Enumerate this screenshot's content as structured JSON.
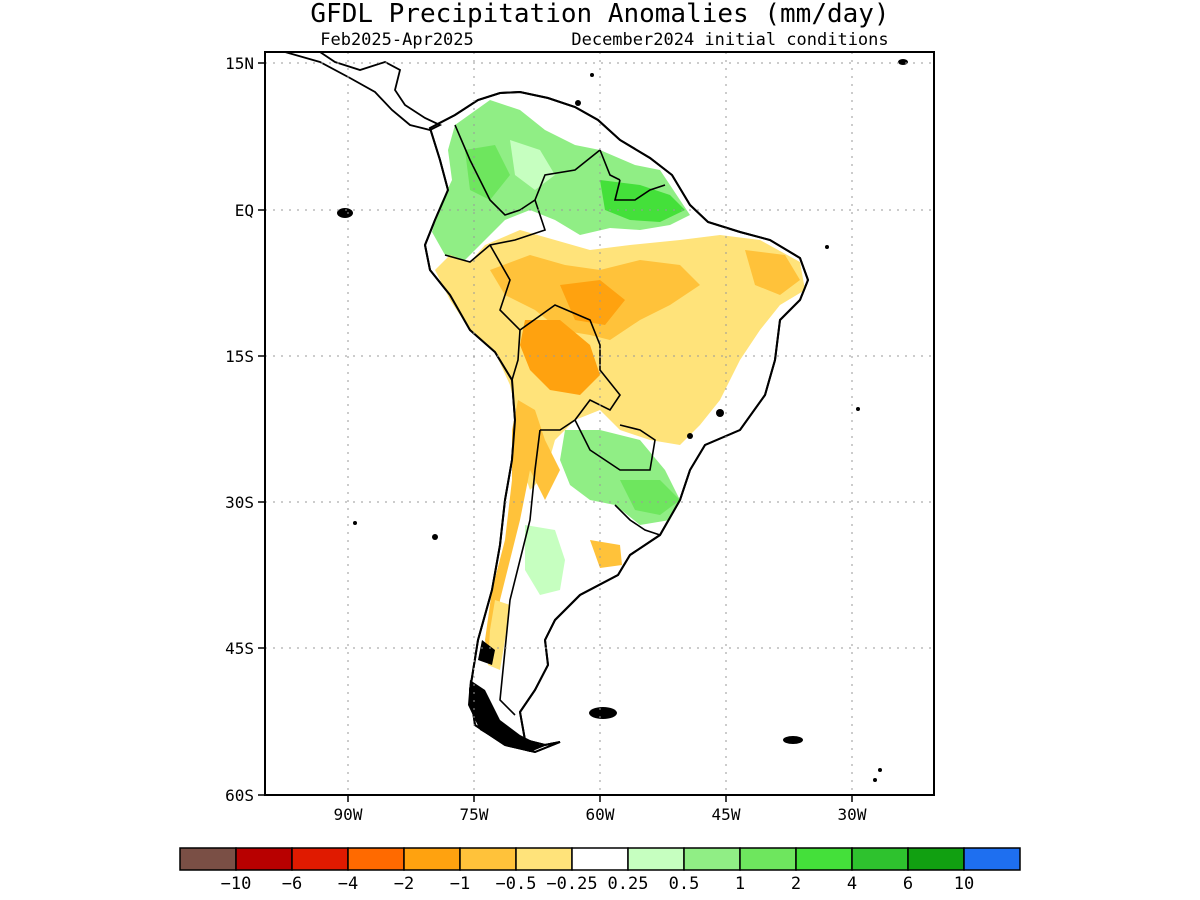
{
  "title": "GFDL Precipitation Anomalies (mm/day)",
  "subtitle_left": "Feb2025-Apr2025",
  "subtitle_right": "December2024 initial conditions",
  "lat_labels": [
    "15N",
    "EQ",
    "15S",
    "30S",
    "45S",
    "60S"
  ],
  "lon_labels": [
    "90W",
    "75W",
    "60W",
    "45W",
    "30W"
  ],
  "colorbar": {
    "colors": [
      "#7a4f45",
      "#b80000",
      "#e01a00",
      "#ff6a00",
      "#ffa20f",
      "#ffc23a",
      "#ffe37a",
      "#ffffff",
      "#c6ffc0",
      "#90ee85",
      "#6ee65e",
      "#44e03a",
      "#2ec22e",
      "#11a011",
      "#1e6ff0"
    ],
    "labels": [
      "-10",
      "-6",
      "-4",
      "-2",
      "-1",
      "-0.5",
      "-0.25",
      "0.25",
      "0.5",
      "1",
      "2",
      "4",
      "6",
      "10"
    ]
  },
  "regions": {
    "wet_green": "Northwest South America (Colombia, Venezuela, Guyanas, northern Brazil) and southern Brazil/Uruguay/Paraguay",
    "dry_orange": "Central-eastern Brazil, Peru, Bolivia, Andes of Argentina and Chile"
  }
}
